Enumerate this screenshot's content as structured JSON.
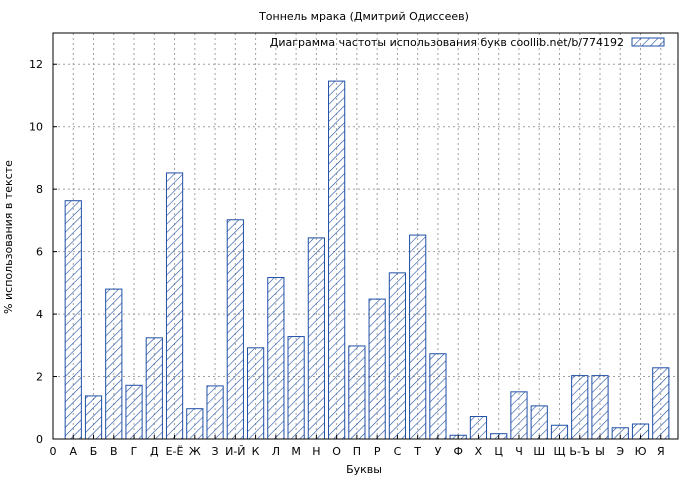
{
  "chart_data": {
    "type": "bar",
    "title": "Тоннель мрака (Дмитрий Одиссеев)",
    "xlabel": "Буквы",
    "ylabel": "% использования в тексте",
    "legend": "Диаграмма частоты использования букв coollib.net/b/774192",
    "legend_position": "top-right",
    "grid": true,
    "ylim": [
      0,
      13
    ],
    "yticks": [
      0,
      2,
      4,
      6,
      8,
      10,
      12
    ],
    "x_start_label": "0",
    "categories": [
      "А",
      "Б",
      "В",
      "Г",
      "Д",
      "Е-Ё",
      "Ж",
      "З",
      "И-Й",
      "К",
      "Л",
      "М",
      "Н",
      "О",
      "П",
      "Р",
      "С",
      "Т",
      "У",
      "Ф",
      "Х",
      "Ц",
      "Ч",
      "Ш",
      "Щ",
      "Ь-Ъ",
      "Ы",
      "Э",
      "Ю",
      "Я"
    ],
    "values": [
      7.63,
      1.38,
      4.8,
      1.72,
      3.24,
      8.52,
      0.97,
      1.7,
      7.02,
      2.92,
      5.17,
      3.28,
      6.44,
      11.46,
      2.98,
      4.48,
      5.32,
      6.53,
      2.73,
      0.12,
      0.72,
      0.17,
      1.51,
      1.06,
      0.44,
      2.03,
      2.03,
      0.36,
      0.48,
      2.28
    ],
    "colors": {
      "bar_stroke": "#1f4fa5",
      "hatch": "#1f4fa5",
      "grid": "#a0a0a0",
      "axis": "#000000"
    }
  }
}
